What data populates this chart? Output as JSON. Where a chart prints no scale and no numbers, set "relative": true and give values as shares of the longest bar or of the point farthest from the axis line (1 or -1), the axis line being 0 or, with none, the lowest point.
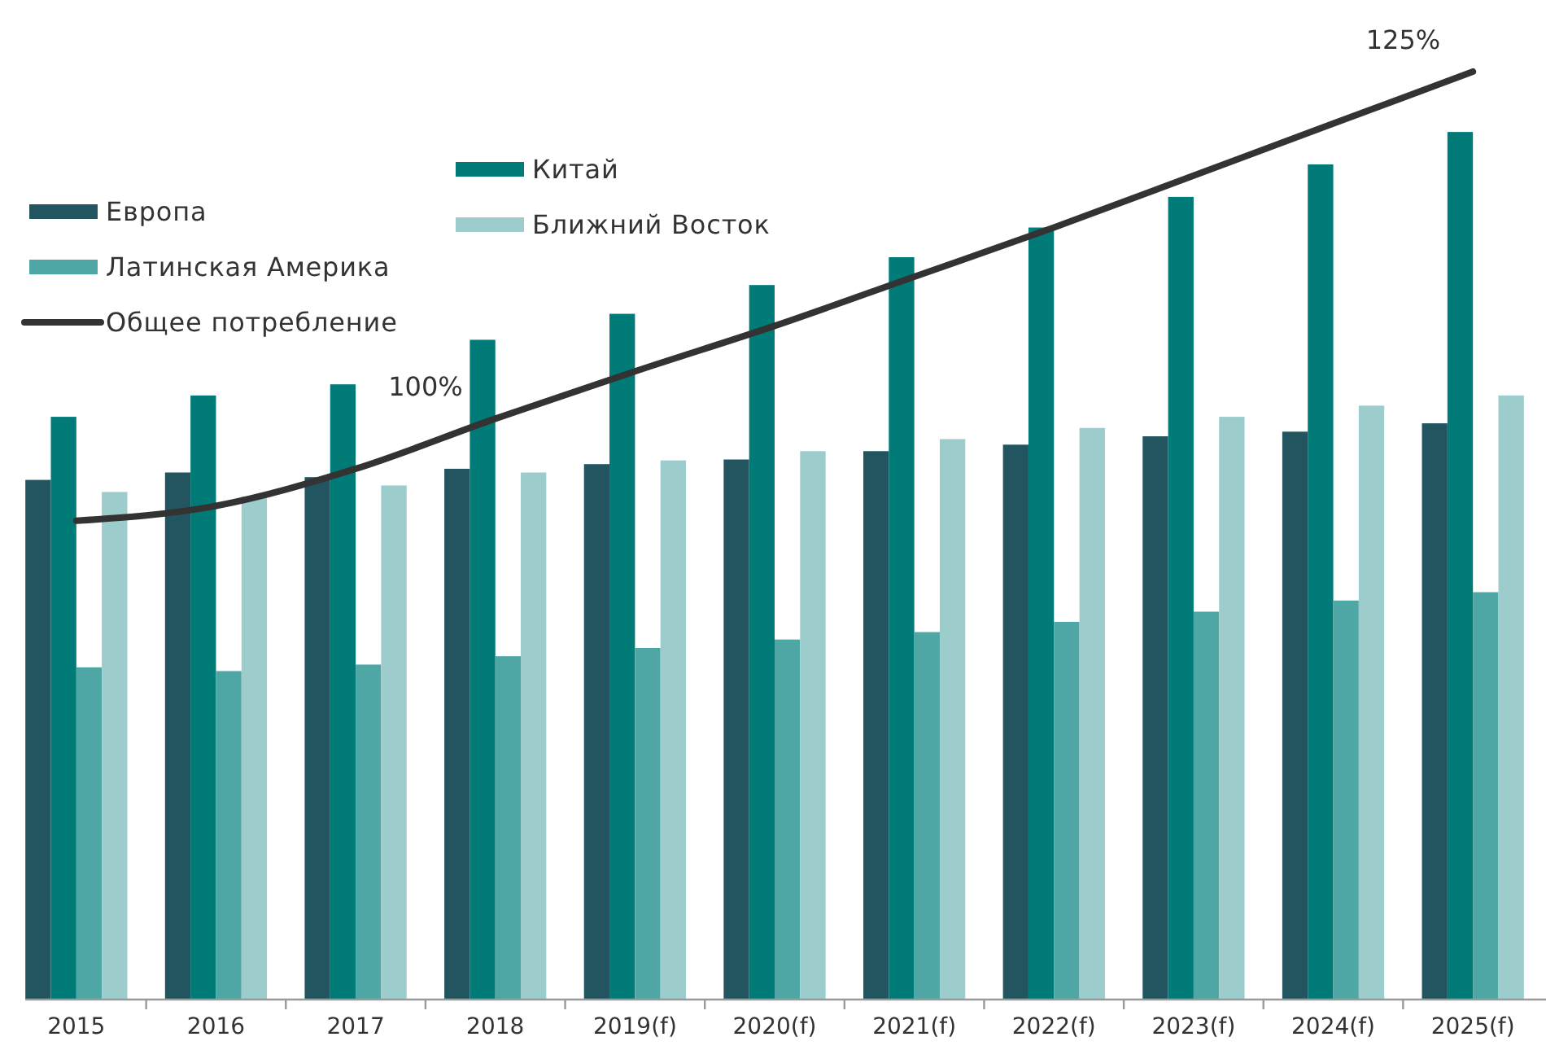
{
  "chart_data": {
    "type": "bar",
    "relative": true,
    "legend": "top left",
    "categories": [
      "2015",
      "2016",
      "2017",
      "2018",
      "2019(f)",
      "2020(f)",
      "2021(f)",
      "2022(f)",
      "2023(f)",
      "2024(f)",
      "2025(f)"
    ],
    "series": [
      {
        "name": "Европа",
        "color": "#22555f",
        "values": [
          0.56,
          0.568,
          0.563,
          0.572,
          0.577,
          0.582,
          0.591,
          0.598,
          0.607,
          0.612,
          0.621
        ]
      },
      {
        "name": "Китай",
        "color": "#007b78",
        "values": [
          0.628,
          0.651,
          0.663,
          0.711,
          0.739,
          0.77,
          0.8,
          0.832,
          0.865,
          0.9,
          0.935
        ]
      },
      {
        "name": "Латинская Америка",
        "color": "#4ea7a5",
        "values": [
          0.358,
          0.354,
          0.361,
          0.37,
          0.379,
          0.388,
          0.396,
          0.407,
          0.418,
          0.43,
          0.439
        ]
      },
      {
        "name": "Ближний Восток",
        "color": "#9ccccb",
        "values": [
          0.547,
          0.542,
          0.554,
          0.568,
          0.581,
          0.591,
          0.604,
          0.616,
          0.628,
          0.64,
          0.651
        ]
      },
      {
        "name": "Общее потребление",
        "type": "line",
        "color": "#333333",
        "values": [
          0.516,
          0.532,
          0.572,
          0.626,
          0.677,
          0.726,
          0.779,
          0.832,
          0.888,
          0.944,
          1
        ]
      }
    ],
    "annotations": [
      {
        "text": "100%",
        "x": "2018",
        "y": 0.626
      },
      {
        "text": "125%",
        "x": "2025(f)",
        "y": 1
      }
    ]
  }
}
